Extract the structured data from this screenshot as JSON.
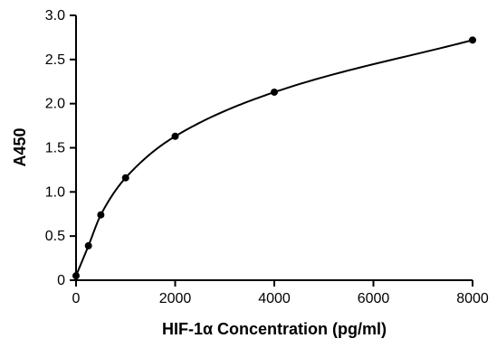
{
  "chart_data": {
    "type": "scatter",
    "title": "",
    "xlabel": "HIF-1α Concentration (pg/ml)",
    "ylabel": "A450",
    "xlim": [
      0,
      8000
    ],
    "ylim": [
      0,
      3.0
    ],
    "x_ticks": [
      0,
      2000,
      4000,
      6000,
      8000
    ],
    "x_tick_labels": [
      "0",
      "2000",
      "4000",
      "6000",
      "8000"
    ],
    "y_ticks": [
      0,
      0.5,
      1.0,
      1.5,
      2.0,
      2.5,
      3.0
    ],
    "y_tick_labels": [
      "0",
      "0.5",
      "1.0",
      "1.5",
      "2.0",
      "2.5",
      "3.0"
    ],
    "grid": false,
    "series": [
      {
        "points": [
          {
            "x": 0,
            "y": 0.05
          },
          {
            "x": 250,
            "y": 0.39
          },
          {
            "x": 500,
            "y": 0.74
          },
          {
            "x": 1000,
            "y": 1.16
          },
          {
            "x": 2000,
            "y": 1.63
          },
          {
            "x": 4000,
            "y": 2.13
          },
          {
            "x": 8000,
            "y": 2.72
          }
        ],
        "fit_curve": true
      }
    ]
  }
}
